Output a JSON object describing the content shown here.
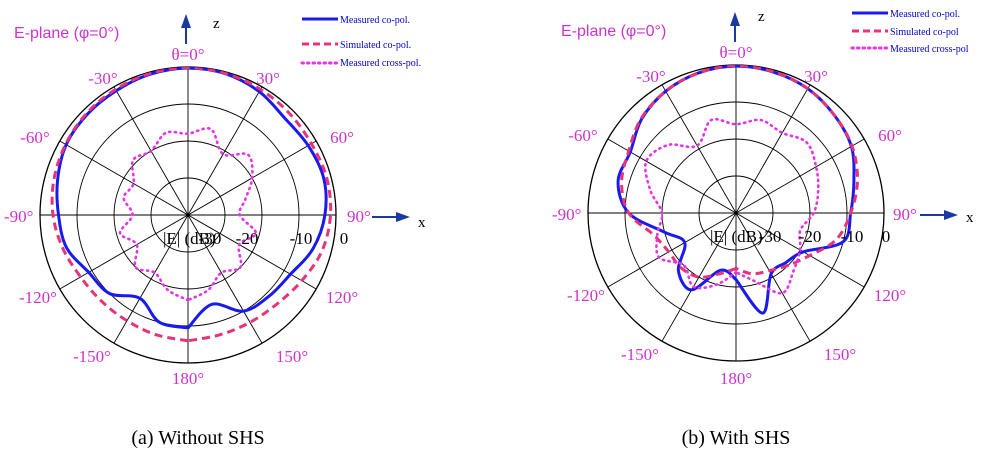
{
  "colors": {
    "measured_co": "#1a1aee",
    "simulated_co": "#e8337a",
    "measured_cross": "#e633e6",
    "angle_label": "#cc33cc",
    "axis_arrow": "#1a3aa0"
  },
  "chart_data": [
    {
      "type": "line",
      "projection": "polar",
      "title": "E-plane (φ=0°)",
      "caption": "(a) Without SHS",
      "axis_z": "z",
      "axis_x": "x",
      "radial_label": "|E| (dB)",
      "radial_ticks": [
        "-30",
        "-20",
        "-10",
        "0"
      ],
      "radial_range": [
        -40,
        0
      ],
      "angle_labels": [
        "θ=0°",
        "30°",
        "60°",
        "90°",
        "120°",
        "150°",
        "180°",
        "-150°",
        "-120°",
        "-90°",
        "-60°",
        "-30°"
      ],
      "grid": true,
      "legend_position": "top-right",
      "theta_deg": [
        -180,
        -165,
        -150,
        -135,
        -120,
        -105,
        -90,
        -75,
        -60,
        -45,
        -30,
        -15,
        0,
        15,
        30,
        45,
        60,
        75,
        90,
        105,
        120,
        135,
        150,
        165,
        180
      ],
      "series": [
        {
          "name": "Measured co-pol.",
          "style": "solid",
          "values": [
            -9.5,
            -10,
            -14,
            -10,
            -9,
            -6,
            -5,
            -3.5,
            -2,
            -1.5,
            -1.2,
            -0.6,
            -0.3,
            -0.5,
            -1.5,
            -3,
            -2.5,
            -2,
            -3,
            -5,
            -8,
            -9,
            -10,
            -15,
            -9.5
          ]
        },
        {
          "name": "Simulated co-pol.",
          "style": "dashed",
          "values": [
            -6,
            -6.5,
            -7,
            -7,
            -6.5,
            -5,
            -3.5,
            -2.5,
            -1.8,
            -1.2,
            -0.8,
            -0.4,
            -0.2,
            -0.4,
            -0.8,
            -1.2,
            -1.5,
            -1.2,
            -1.5,
            -2.5,
            -4.5,
            -6,
            -6.5,
            -6.5,
            -6
          ]
        },
        {
          "name": "Measured cross-pol.",
          "style": "dotted",
          "values": [
            -17,
            -19,
            -22,
            -20,
            -24,
            -21,
            -25,
            -22,
            -23,
            -19,
            -20,
            -17,
            -18,
            -16,
            -21,
            -17,
            -20,
            -24,
            -26,
            -21,
            -24,
            -20,
            -22,
            -19,
            -17
          ]
        }
      ]
    },
    {
      "type": "line",
      "projection": "polar",
      "title": "E-plane (φ=0°)",
      "caption": "(b) With SHS",
      "axis_z": "z",
      "axis_x": "x",
      "radial_label": "|E| (dB)",
      "radial_ticks": [
        "-30",
        "-20",
        "-10",
        "0"
      ],
      "radial_range": [
        -40,
        0
      ],
      "angle_labels": [
        "θ=0°",
        "30°",
        "60°",
        "90°",
        "120°",
        "150°",
        "180°",
        "-150°",
        "-120°",
        "-90°",
        "-60°",
        "-30°"
      ],
      "grid": true,
      "legend_position": "top-right",
      "theta_deg": [
        -180,
        -165,
        -150,
        -135,
        -120,
        -105,
        -90,
        -75,
        -60,
        -45,
        -30,
        -15,
        0,
        15,
        30,
        45,
        60,
        75,
        90,
        105,
        120,
        135,
        150,
        165,
        180
      ],
      "series": [
        {
          "name": "Measured co-pol.",
          "style": "solid",
          "values": [
            -22,
            -24,
            -16,
            -18,
            -24,
            -20,
            -11,
            -7,
            -7,
            -4,
            -2,
            -0.8,
            -0.3,
            -0.6,
            -1.2,
            -2.5,
            -4,
            -7,
            -9,
            -10,
            -19,
            -21,
            -21,
            -12,
            -22
          ]
        },
        {
          "name": "Simulated co-pol",
          "style": "dashed",
          "values": [
            -25,
            -23,
            -20,
            -19,
            -19,
            -17,
            -11,
            -8,
            -6.5,
            -3.8,
            -2,
            -0.8,
            -0.2,
            -0.5,
            -1.2,
            -2.5,
            -3.8,
            -6,
            -9,
            -12,
            -17,
            -20,
            -22,
            -23,
            -25
          ]
        },
        {
          "name": "Measured cross-pol",
          "style": "dotted",
          "values": [
            -24,
            -20,
            -17,
            -20,
            -16,
            -18,
            -20,
            -16,
            -12,
            -14,
            -19,
            -14,
            -16,
            -14,
            -15,
            -13,
            -15,
            -17,
            -19,
            -22,
            -20,
            -18,
            -15,
            -21,
            -24
          ]
        }
      ]
    }
  ]
}
